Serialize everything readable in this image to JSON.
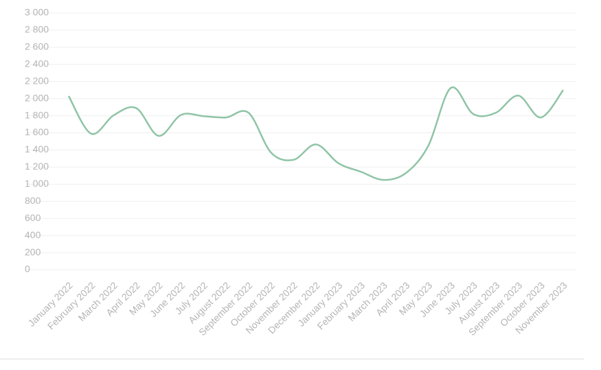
{
  "chart_data": {
    "type": "line",
    "categories": [
      "January 2022",
      "February 2022",
      "March 2022",
      "April 2022",
      "May 2022",
      "June 2022",
      "July 2022",
      "August 2022",
      "September 2022",
      "October 2022",
      "November 2022",
      "December 2022",
      "January 2023",
      "February 2023",
      "March 2023",
      "April 2023",
      "May 2023",
      "June 2023",
      "July 2023",
      "August 2023",
      "September 2023",
      "October 2023",
      "November 2023"
    ],
    "series": [
      {
        "color": "#8fc4a6",
        "values": [
          2030,
          1590,
          1805,
          1890,
          1565,
          1810,
          1795,
          1780,
          1835,
          1370,
          1285,
          1465,
          1245,
          1145,
          1050,
          1130,
          1450,
          2125,
          1820,
          1835,
          2035,
          1780,
          2100
        ]
      }
    ],
    "ylim": [
      0,
      3000
    ],
    "yticks": [
      0,
      200,
      400,
      600,
      800,
      {
        "value": 1000,
        "label": "1 000"
      },
      {
        "value": 1200,
        "label": "1 200"
      },
      {
        "value": 1400,
        "label": "1 400"
      },
      {
        "value": 1600,
        "label": "1 600"
      },
      {
        "value": 1800,
        "label": "1 800"
      },
      {
        "value": 2000,
        "label": "2 000"
      },
      {
        "value": 2200,
        "label": "2 200"
      },
      {
        "value": 2400,
        "label": "2 400"
      },
      {
        "value": 2600,
        "label": "2 600"
      },
      {
        "value": 2800,
        "label": "2 800"
      },
      {
        "value": 3000,
        "label": "3 000"
      }
    ],
    "grid": true
  }
}
